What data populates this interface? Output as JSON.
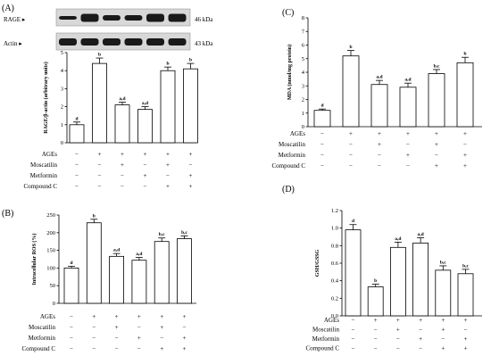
{
  "chart_data": [
    {
      "id": "A",
      "type": "bar",
      "panel_label": "(A)",
      "blot": {
        "rows": [
          {
            "label": "RAGE",
            "size": "46 kDa"
          },
          {
            "label": "Actin",
            "size": "43 kDa"
          }
        ]
      },
      "ylabel": "RAGE/β-actin (arbitrary units)",
      "ylim": [
        0,
        5
      ],
      "yticks": [
        "0",
        "1",
        "2",
        "3",
        "4",
        "5"
      ],
      "values": [
        1.0,
        4.4,
        2.1,
        1.85,
        4.0,
        4.1
      ],
      "errors": [
        0.15,
        0.3,
        0.15,
        0.15,
        0.2,
        0.3
      ],
      "sig": [
        "d",
        "b",
        "a,d",
        "a,d",
        "b",
        "b"
      ],
      "conditions": [
        {
          "name": "AGEs",
          "marks": [
            "−",
            "+",
            "+",
            "+",
            "+",
            "+"
          ]
        },
        {
          "name": "Moscatilin",
          "marks": [
            "−",
            "−",
            "+",
            "−",
            "+",
            "−"
          ]
        },
        {
          "name": "Metformin",
          "marks": [
            "−",
            "−",
            "−",
            "+",
            "−",
            "+"
          ]
        },
        {
          "name": "Compound C",
          "marks": [
            "−",
            "−",
            "−",
            "−",
            "+",
            "+"
          ]
        }
      ]
    },
    {
      "id": "B",
      "type": "bar",
      "panel_label": "(B)",
      "ylabel": "Intracellular ROS (%)",
      "ylim": [
        0,
        250
      ],
      "yticks": [
        "0",
        "50",
        "100",
        "150",
        "200",
        "250"
      ],
      "values": [
        100,
        228,
        133,
        122,
        175,
        183
      ],
      "errors": [
        5,
        10,
        8,
        8,
        10,
        8
      ],
      "sig": [
        "d",
        "b",
        "a,d",
        "a,d",
        "b,c",
        "b,c"
      ],
      "conditions": [
        {
          "name": "AGEs",
          "marks": [
            "−",
            "+",
            "+",
            "+",
            "+",
            "+"
          ]
        },
        {
          "name": "Moscatilin",
          "marks": [
            "−",
            "−",
            "+",
            "−",
            "+",
            "−"
          ]
        },
        {
          "name": "Metformin",
          "marks": [
            "−",
            "−",
            "−",
            "+",
            "−",
            "+"
          ]
        },
        {
          "name": "Compound C",
          "marks": [
            "−",
            "−",
            "−",
            "−",
            "+",
            "+"
          ]
        }
      ]
    },
    {
      "id": "C",
      "type": "bar",
      "panel_label": "(C)",
      "ylabel": "MDA (nmol/mg protein)",
      "ylim": [
        0,
        8
      ],
      "yticks": [
        "0",
        "1",
        "2",
        "3",
        "4",
        "5",
        "6",
        "7",
        "8"
      ],
      "values": [
        1.2,
        5.2,
        3.1,
        2.9,
        3.9,
        4.7
      ],
      "errors": [
        0.1,
        0.4,
        0.3,
        0.3,
        0.3,
        0.4
      ],
      "sig": [
        "d",
        "b",
        "a,d",
        "a,d",
        "b,c",
        "b"
      ],
      "conditions": [
        {
          "name": "AGEs",
          "marks": [
            "−",
            "+",
            "+",
            "+",
            "+",
            "+"
          ]
        },
        {
          "name": "Moscatilin",
          "marks": [
            "−",
            "−",
            "+",
            "−",
            "+",
            "−"
          ]
        },
        {
          "name": "Metformin",
          "marks": [
            "−",
            "−",
            "−",
            "+",
            "−",
            "+"
          ]
        },
        {
          "name": "Compound C",
          "marks": [
            "−",
            "−",
            "−",
            "−",
            "+",
            "+"
          ]
        }
      ]
    },
    {
      "id": "D",
      "type": "bar",
      "panel_label": "(D)",
      "ylabel": "GSH/GSSG",
      "ylim": [
        0,
        1.2
      ],
      "yticks": [
        "0.0",
        "0.2",
        "0.4",
        "0.6",
        "0.8",
        "1.0",
        "1.2"
      ],
      "values": [
        0.98,
        0.33,
        0.78,
        0.83,
        0.52,
        0.48
      ],
      "errors": [
        0.06,
        0.03,
        0.06,
        0.06,
        0.05,
        0.05
      ],
      "sig": [
        "d",
        "b",
        "a,d",
        "a,d",
        "b,c",
        "b,c"
      ],
      "conditions": [
        {
          "name": "AGEs",
          "marks": [
            "−",
            "+",
            "+",
            "+",
            "+",
            "+"
          ]
        },
        {
          "name": "Moscatilin",
          "marks": [
            "−",
            "−",
            "+",
            "−",
            "+",
            "−"
          ]
        },
        {
          "name": "Metformin",
          "marks": [
            "−",
            "−",
            "−",
            "+",
            "−",
            "+"
          ]
        },
        {
          "name": "Compound C",
          "marks": [
            "−",
            "−",
            "−",
            "−",
            "+",
            "+"
          ]
        }
      ]
    }
  ]
}
